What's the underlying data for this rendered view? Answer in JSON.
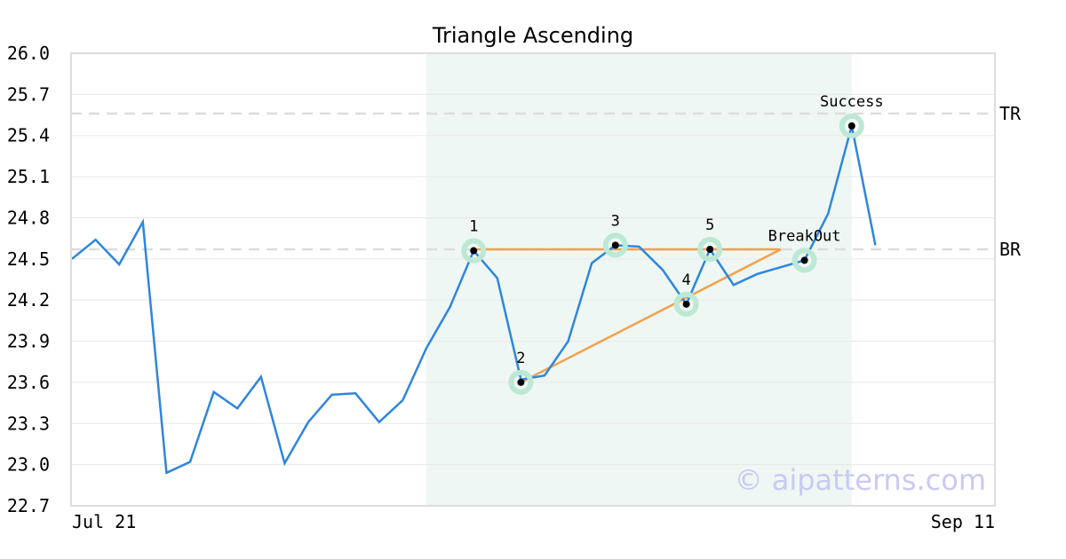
{
  "chart_data": {
    "type": "line",
    "title": "Triangle Ascending",
    "xlabel": "",
    "ylabel": "",
    "ylim": [
      22.7,
      26.0
    ],
    "y_ticks": [
      "22.7",
      "23.0",
      "23.3",
      "23.6",
      "23.9",
      "24.2",
      "24.5",
      "24.8",
      "25.1",
      "25.4",
      "25.7",
      "26.0"
    ],
    "x_tick_labels": [
      {
        "index": 0,
        "label": "Jul 21"
      },
      {
        "index": 39,
        "label": "Sep 11"
      }
    ],
    "grid": true,
    "series": [
      {
        "color": "#2e86de",
        "values": [
          24.5,
          24.64,
          24.46,
          24.77,
          22.94,
          23.02,
          23.53,
          23.41,
          23.64,
          23.01,
          23.31,
          23.51,
          23.52,
          23.31,
          23.47,
          23.85,
          24.15,
          24.56,
          24.36,
          23.62,
          23.65,
          23.9,
          24.47,
          24.6,
          24.59,
          24.42,
          24.17,
          24.57,
          24.31,
          24.39,
          24.44,
          24.49,
          24.83,
          25.47,
          24.6
        ]
      }
    ],
    "highlight_range": [
      15,
      33
    ],
    "levels": [
      {
        "label": "TR",
        "value": 25.56
      },
      {
        "label": "BR",
        "value": 24.57
      }
    ],
    "pattern_points": [
      {
        "label": "1",
        "index": 17,
        "value": 24.56
      },
      {
        "label": "2",
        "index": 19,
        "value": 23.6
      },
      {
        "label": "3",
        "index": 23,
        "value": 24.6
      },
      {
        "label": "4",
        "index": 26,
        "value": 24.17
      },
      {
        "label": "5",
        "index": 27,
        "value": 24.57
      },
      {
        "label": "BreakOut",
        "index": 31,
        "value": 24.49
      },
      {
        "label": "Success",
        "index": 33,
        "value": 25.47
      }
    ],
    "triangle_lines": [
      {
        "from": [
          17,
          24.57
        ],
        "to": [
          30,
          24.57
        ]
      },
      {
        "from": [
          19,
          23.6
        ],
        "to": [
          30,
          24.57
        ]
      }
    ],
    "colors": {
      "line": "#2e86de",
      "triangle": "#f5a04a",
      "highlight": "#eef7f3",
      "marker_ring": "#bde8d4",
      "level": "#dddddd",
      "grid": "#e8e8e8",
      "frame": "#dddddd"
    }
  },
  "watermark": "© aipatterns.com"
}
